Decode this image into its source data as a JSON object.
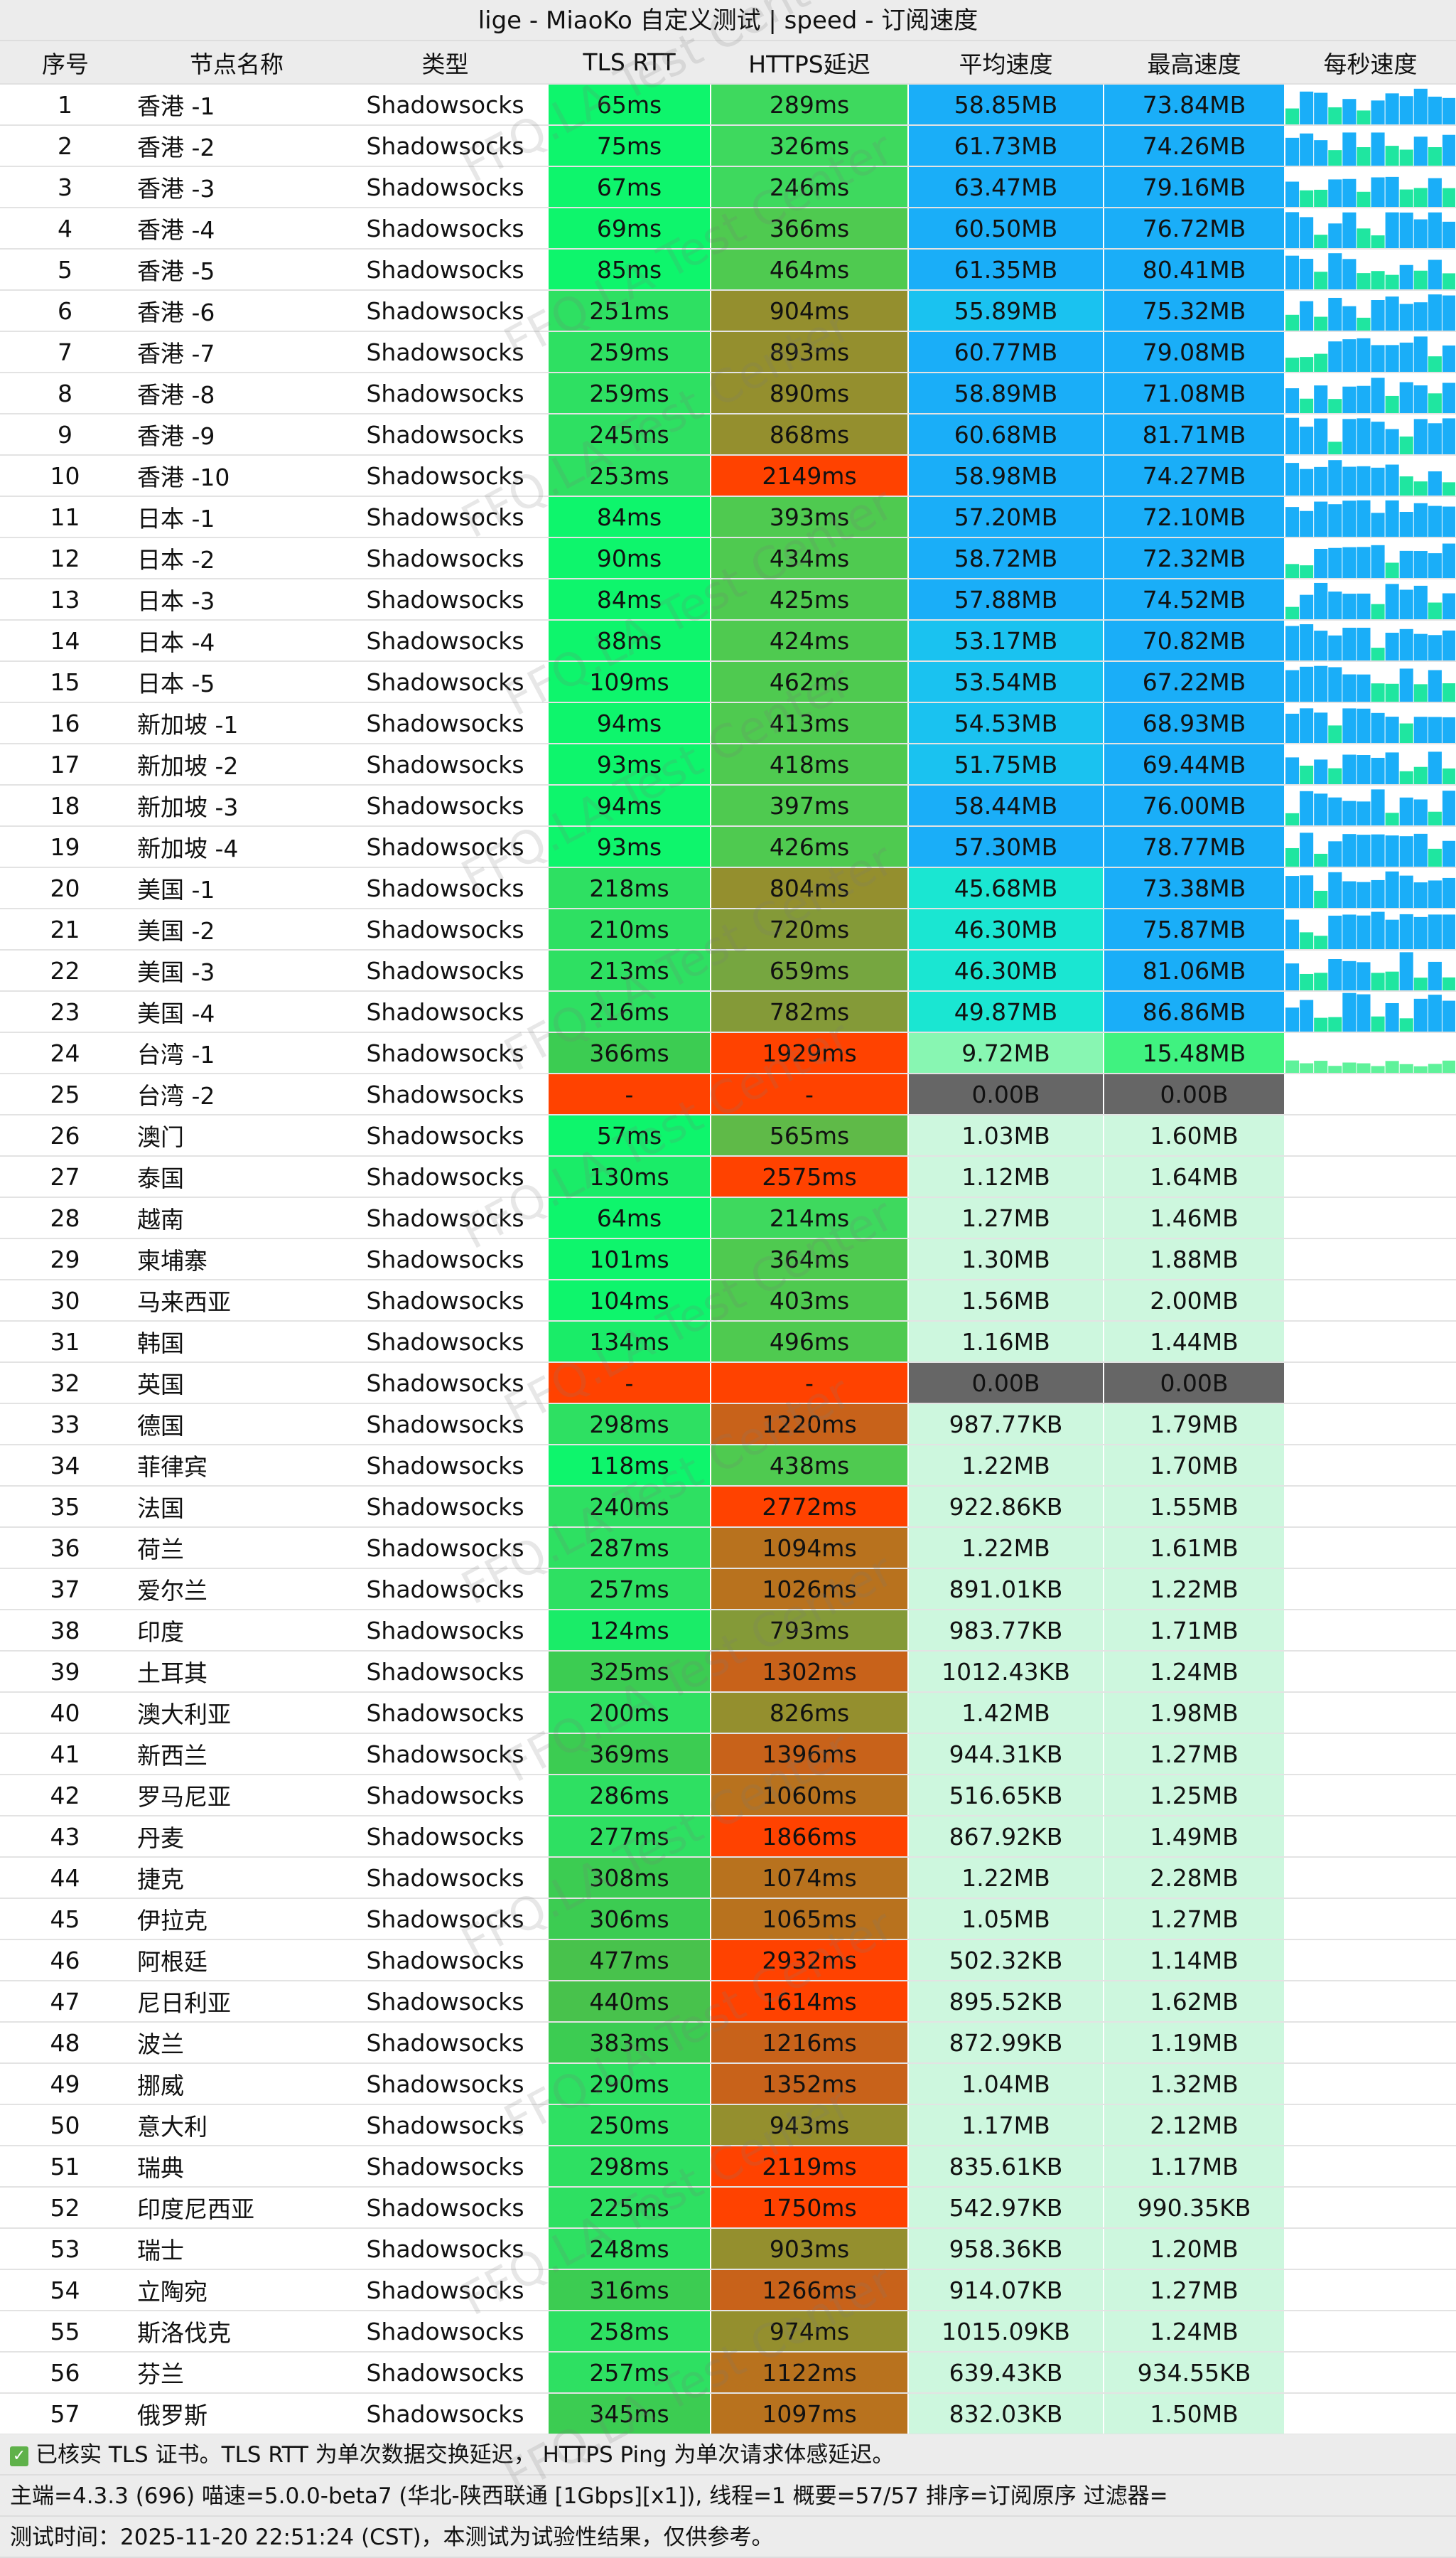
{
  "title": "lige - MiaoKo 自定义测试 | speed - 订阅速度",
  "watermark": "FFQ.LA Test Center",
  "headers": [
    "序号",
    "节点名称",
    "类型",
    "TLS RTT",
    "HTTPS延迟",
    "平均速度",
    "最高速度",
    "每秒速度"
  ],
  "rows": [
    [
      "1",
      "香港 -1",
      "Shadowsocks",
      "65ms",
      "289ms",
      "58.85MB",
      "73.84MB"
    ],
    [
      "2",
      "香港 -2",
      "Shadowsocks",
      "75ms",
      "326ms",
      "61.73MB",
      "74.26MB"
    ],
    [
      "3",
      "香港 -3",
      "Shadowsocks",
      "67ms",
      "246ms",
      "63.47MB",
      "79.16MB"
    ],
    [
      "4",
      "香港 -4",
      "Shadowsocks",
      "69ms",
      "366ms",
      "60.50MB",
      "76.72MB"
    ],
    [
      "5",
      "香港 -5",
      "Shadowsocks",
      "85ms",
      "464ms",
      "61.35MB",
      "80.41MB"
    ],
    [
      "6",
      "香港 -6",
      "Shadowsocks",
      "251ms",
      "904ms",
      "55.89MB",
      "75.32MB"
    ],
    [
      "7",
      "香港 -7",
      "Shadowsocks",
      "259ms",
      "893ms",
      "60.77MB",
      "79.08MB"
    ],
    [
      "8",
      "香港 -8",
      "Shadowsocks",
      "259ms",
      "890ms",
      "58.89MB",
      "71.08MB"
    ],
    [
      "9",
      "香港 -9",
      "Shadowsocks",
      "245ms",
      "868ms",
      "60.68MB",
      "81.71MB"
    ],
    [
      "10",
      "香港 -10",
      "Shadowsocks",
      "253ms",
      "2149ms",
      "58.98MB",
      "74.27MB"
    ],
    [
      "11",
      "日本 -1",
      "Shadowsocks",
      "84ms",
      "393ms",
      "57.20MB",
      "72.10MB"
    ],
    [
      "12",
      "日本 -2",
      "Shadowsocks",
      "90ms",
      "434ms",
      "58.72MB",
      "72.32MB"
    ],
    [
      "13",
      "日本 -3",
      "Shadowsocks",
      "84ms",
      "425ms",
      "57.88MB",
      "74.52MB"
    ],
    [
      "14",
      "日本 -4",
      "Shadowsocks",
      "88ms",
      "424ms",
      "53.17MB",
      "70.82MB"
    ],
    [
      "15",
      "日本 -5",
      "Shadowsocks",
      "109ms",
      "462ms",
      "53.54MB",
      "67.22MB"
    ],
    [
      "16",
      "新加坡 -1",
      "Shadowsocks",
      "94ms",
      "413ms",
      "54.53MB",
      "68.93MB"
    ],
    [
      "17",
      "新加坡 -2",
      "Shadowsocks",
      "93ms",
      "418ms",
      "51.75MB",
      "69.44MB"
    ],
    [
      "18",
      "新加坡 -3",
      "Shadowsocks",
      "94ms",
      "397ms",
      "58.44MB",
      "76.00MB"
    ],
    [
      "19",
      "新加坡 -4",
      "Shadowsocks",
      "93ms",
      "426ms",
      "57.30MB",
      "78.77MB"
    ],
    [
      "20",
      "美国 -1",
      "Shadowsocks",
      "218ms",
      "804ms",
      "45.68MB",
      "73.38MB"
    ],
    [
      "21",
      "美国 -2",
      "Shadowsocks",
      "210ms",
      "720ms",
      "46.30MB",
      "75.87MB"
    ],
    [
      "22",
      "美国 -3",
      "Shadowsocks",
      "213ms",
      "659ms",
      "46.30MB",
      "81.06MB"
    ],
    [
      "23",
      "美国 -4",
      "Shadowsocks",
      "216ms",
      "782ms",
      "49.87MB",
      "86.86MB"
    ],
    [
      "24",
      "台湾 -1",
      "Shadowsocks",
      "366ms",
      "1929ms",
      "9.72MB",
      "15.48MB"
    ],
    [
      "25",
      "台湾 -2",
      "Shadowsocks",
      "-",
      "-",
      "0.00B",
      "0.00B"
    ],
    [
      "26",
      "澳门",
      "Shadowsocks",
      "57ms",
      "565ms",
      "1.03MB",
      "1.60MB"
    ],
    [
      "27",
      "泰国",
      "Shadowsocks",
      "130ms",
      "2575ms",
      "1.12MB",
      "1.64MB"
    ],
    [
      "28",
      "越南",
      "Shadowsocks",
      "64ms",
      "214ms",
      "1.27MB",
      "1.46MB"
    ],
    [
      "29",
      "柬埔寨",
      "Shadowsocks",
      "101ms",
      "364ms",
      "1.30MB",
      "1.88MB"
    ],
    [
      "30",
      "马来西亚",
      "Shadowsocks",
      "104ms",
      "403ms",
      "1.56MB",
      "2.00MB"
    ],
    [
      "31",
      "韩国",
      "Shadowsocks",
      "134ms",
      "496ms",
      "1.16MB",
      "1.44MB"
    ],
    [
      "32",
      "英国",
      "Shadowsocks",
      "-",
      "-",
      "0.00B",
      "0.00B"
    ],
    [
      "33",
      "德国",
      "Shadowsocks",
      "298ms",
      "1220ms",
      "987.77KB",
      "1.79MB"
    ],
    [
      "34",
      "菲律宾",
      "Shadowsocks",
      "118ms",
      "438ms",
      "1.22MB",
      "1.70MB"
    ],
    [
      "35",
      "法国",
      "Shadowsocks",
      "240ms",
      "2772ms",
      "922.86KB",
      "1.55MB"
    ],
    [
      "36",
      "荷兰",
      "Shadowsocks",
      "287ms",
      "1094ms",
      "1.22MB",
      "1.61MB"
    ],
    [
      "37",
      "爱尔兰",
      "Shadowsocks",
      "257ms",
      "1026ms",
      "891.01KB",
      "1.22MB"
    ],
    [
      "38",
      "印度",
      "Shadowsocks",
      "124ms",
      "793ms",
      "983.77KB",
      "1.71MB"
    ],
    [
      "39",
      "土耳其",
      "Shadowsocks",
      "325ms",
      "1302ms",
      "1012.43KB",
      "1.24MB"
    ],
    [
      "40",
      "澳大利亚",
      "Shadowsocks",
      "200ms",
      "826ms",
      "1.42MB",
      "1.98MB"
    ],
    [
      "41",
      "新西兰",
      "Shadowsocks",
      "369ms",
      "1396ms",
      "944.31KB",
      "1.27MB"
    ],
    [
      "42",
      "罗马尼亚",
      "Shadowsocks",
      "286ms",
      "1060ms",
      "516.65KB",
      "1.25MB"
    ],
    [
      "43",
      "丹麦",
      "Shadowsocks",
      "277ms",
      "1866ms",
      "867.92KB",
      "1.49MB"
    ],
    [
      "44",
      "捷克",
      "Shadowsocks",
      "308ms",
      "1074ms",
      "1.22MB",
      "2.28MB"
    ],
    [
      "45",
      "伊拉克",
      "Shadowsocks",
      "306ms",
      "1065ms",
      "1.05MB",
      "1.27MB"
    ],
    [
      "46",
      "阿根廷",
      "Shadowsocks",
      "477ms",
      "2932ms",
      "502.32KB",
      "1.14MB"
    ],
    [
      "47",
      "尼日利亚",
      "Shadowsocks",
      "440ms",
      "1614ms",
      "895.52KB",
      "1.62MB"
    ],
    [
      "48",
      "波兰",
      "Shadowsocks",
      "383ms",
      "1216ms",
      "872.99KB",
      "1.19MB"
    ],
    [
      "49",
      "挪威",
      "Shadowsocks",
      "290ms",
      "1352ms",
      "1.04MB",
      "1.32MB"
    ],
    [
      "50",
      "意大利",
      "Shadowsocks",
      "250ms",
      "943ms",
      "1.17MB",
      "2.12MB"
    ],
    [
      "51",
      "瑞典",
      "Shadowsocks",
      "298ms",
      "2119ms",
      "835.61KB",
      "1.17MB"
    ],
    [
      "52",
      "印度尼西亚",
      "Shadowsocks",
      "225ms",
      "1750ms",
      "542.97KB",
      "990.35KB"
    ],
    [
      "53",
      "瑞士",
      "Shadowsocks",
      "248ms",
      "903ms",
      "958.36KB",
      "1.20MB"
    ],
    [
      "54",
      "立陶宛",
      "Shadowsocks",
      "316ms",
      "1266ms",
      "914.07KB",
      "1.27MB"
    ],
    [
      "55",
      "斯洛伐克",
      "Shadowsocks",
      "258ms",
      "974ms",
      "1015.09KB",
      "1.24MB"
    ],
    [
      "56",
      "芬兰",
      "Shadowsocks",
      "257ms",
      "1122ms",
      "639.43KB",
      "934.55KB"
    ],
    [
      "57",
      "俄罗斯",
      "Shadowsocks",
      "345ms",
      "1097ms",
      "832.03KB",
      "1.50MB"
    ]
  ],
  "colors": {
    "blue_fast": "#1aaef8",
    "teal": "#1ae6d2",
    "light_green_pale": "#cdf7de",
    "gray_zero": "#666666",
    "red_fail": "#ff4200"
  },
  "footer": {
    "check_icon": "checkbox-checked-icon",
    "line1": "已核实 TLS 证书。TLS RTT 为单次数据交换延迟， HTTPS Ping 为单次请求体感延迟。",
    "line2": "主端=4.3.3 (696) 喵速=5.0.0-beta7 (华北-陕西联通 [1Gbps][x1]), 线程=1 概要=57/57 排序=订阅原序 过滤器=",
    "line3": "测试时间：2025-11-20 22:51:24 (CST)，本测试为试验性结果，仅供参考。"
  }
}
